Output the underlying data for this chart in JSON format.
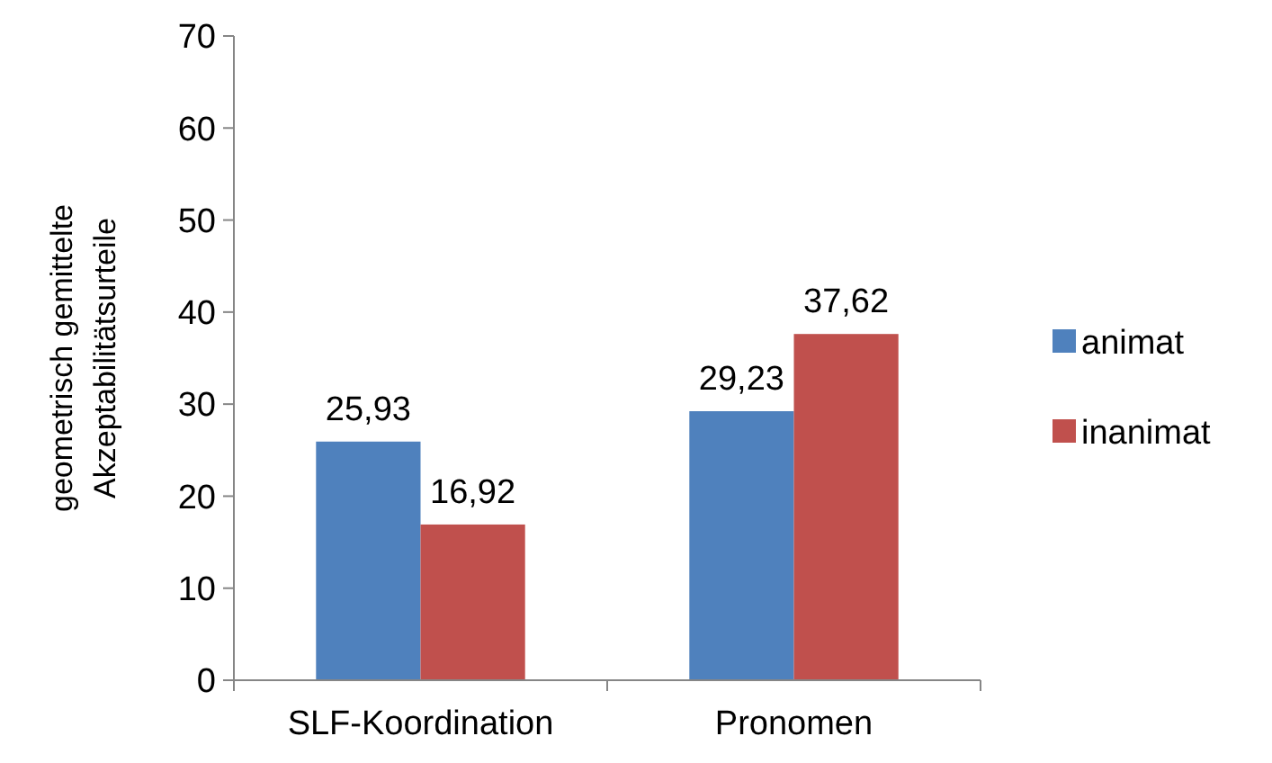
{
  "chart_data": {
    "type": "bar",
    "ylabel": "geometrisch  gemittelte\nAkzeptabilitätsurteile",
    "categories": [
      "SLF-Koordination",
      "Pronomen"
    ],
    "series": [
      {
        "name": "animat",
        "color": "#4f81bd",
        "values": [
          25.93,
          29.23
        ],
        "value_labels": [
          "25,93",
          "29,23"
        ]
      },
      {
        "name": "inanimat",
        "color": "#c0504d",
        "values": [
          16.92,
          37.62
        ],
        "value_labels": [
          "16,92",
          "37,62"
        ]
      }
    ],
    "ylim": [
      0,
      70
    ],
    "yticks": [
      0,
      10,
      20,
      30,
      40,
      50,
      60,
      70
    ],
    "grid": false,
    "legend": "right"
  }
}
